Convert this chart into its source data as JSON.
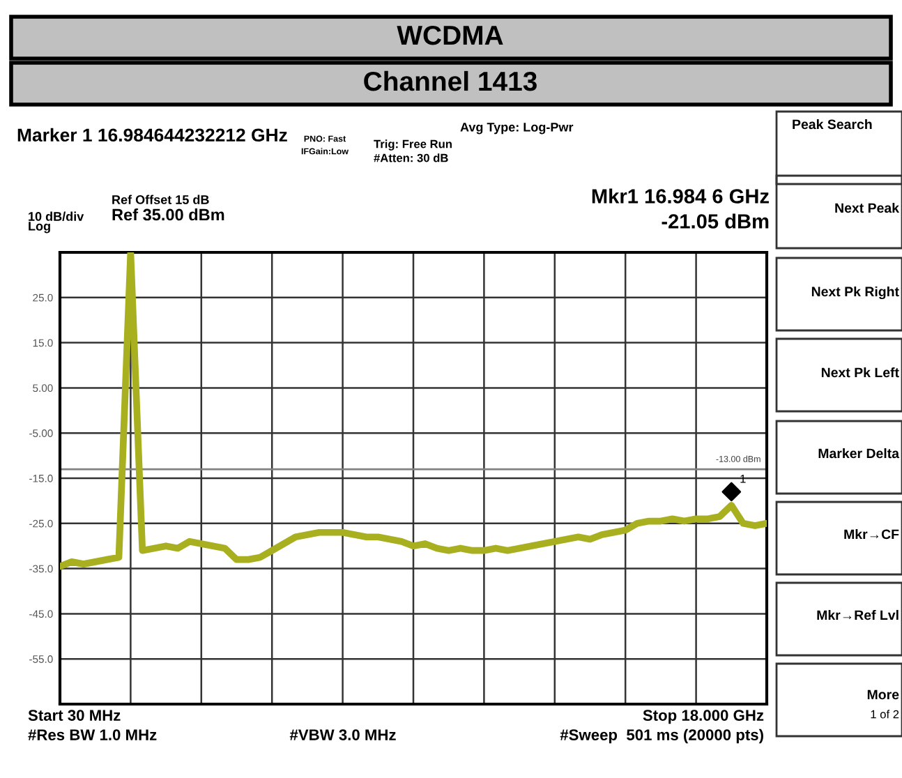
{
  "chart_data": {
    "type": "line",
    "title": "WCDMA",
    "subtitle": "Channel 1413",
    "categories": [
      null,
      null,
      null,
      null,
      null,
      null,
      null,
      null,
      null,
      null,
      null,
      null,
      null,
      null,
      null,
      null,
      null,
      null,
      null,
      null,
      null,
      null,
      null,
      null,
      null,
      null,
      null,
      null,
      null,
      null,
      null,
      null,
      null,
      null,
      null,
      null,
      null,
      null,
      null,
      null,
      null,
      null,
      null,
      null,
      null,
      null,
      null,
      null,
      null,
      null,
      null,
      null,
      null,
      null,
      null,
      null,
      null,
      null,
      null,
      null,
      null
    ],
    "ylim": [
      -65,
      35
    ],
    "yticks": [
      {
        "value": -65,
        "label": null
      },
      {
        "value": -55,
        "label": "-55.0"
      },
      {
        "value": -45,
        "label": "-45.0"
      },
      {
        "value": -35,
        "label": "-35.0"
      },
      {
        "value": -25,
        "label": "-25.0"
      },
      {
        "value": -15,
        "label": "-15.0"
      },
      {
        "value": -5,
        "label": "-5.00"
      },
      {
        "value": 5,
        "label": "5.00"
      },
      {
        "value": 15,
        "label": "15.0"
      },
      {
        "value": 25,
        "label": "25.0"
      },
      {
        "value": 35,
        "label": null
      }
    ],
    "grid": true,
    "tick_labels": "y",
    "ref_lines": [
      {
        "axis": "y",
        "value": -13,
        "label": "-13.00 dBm",
        "color": "#808080"
      }
    ],
    "series": [
      {
        "color": "#a8b020",
        "marker": "none",
        "line_style": "solid",
        "values": [
          -34.5,
          -33.5,
          -34,
          -33.5,
          -33,
          -32.5,
          35,
          -31,
          -30.5,
          -30,
          -30.5,
          -29,
          -29.5,
          -30,
          -30.5,
          -33,
          -33,
          -32.5,
          -31,
          -29.5,
          -28,
          -27.5,
          -27,
          -27,
          -27,
          -27.5,
          -28,
          -28,
          -28.5,
          -29,
          -30,
          -29.5,
          -30.5,
          -31,
          -30.5,
          -31,
          -31,
          -30.5,
          -31,
          -30.5,
          -30,
          -29.5,
          -29,
          -28.5,
          -28,
          -28.5,
          -27.5,
          -27,
          -26.5,
          -25,
          -24.5,
          -24.5,
          -24,
          -24.5,
          -24,
          -24,
          -23.5,
          -21,
          -25,
          -25.5,
          -25
        ]
      }
    ],
    "annotations": [
      "1",
      "Marker 1 16.984644232212 GHz",
      "PNO: Fast",
      "IFGain:Low",
      "Trig: Free Run",
      "#Atten: 30 dB",
      "Avg Type: Log-Pwr",
      "Mkr1 16.984 6 GHz",
      "-21.05 dBm",
      "Ref Offset 15 dB",
      "Ref 35.00 dBm",
      "10 dB/div",
      "Log",
      "Start 30 MHz",
      "Stop 18.000 GHz",
      "#Res BW 1.0 MHz",
      "#VBW 3.0 MHz",
      "#Sweep  501 ms (20000 pts)",
      "Peak Search",
      "Next Peak",
      "Next Pk Right",
      "Next Pk Left",
      "Marker Delta",
      "Mkr→CF",
      "Mkr→Ref Lvl",
      "More",
      "1 of 2"
    ]
  }
}
